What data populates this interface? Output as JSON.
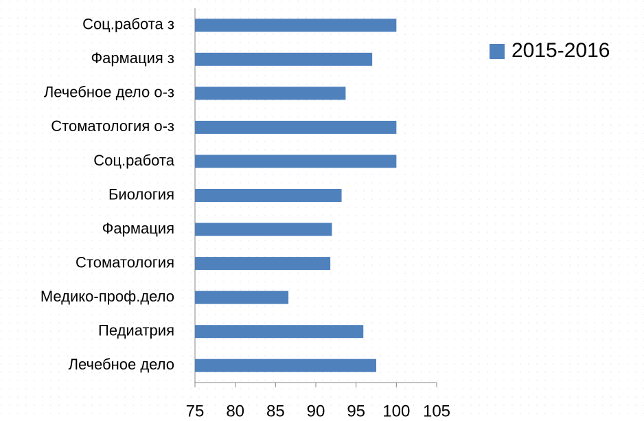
{
  "chart_data": {
    "type": "bar",
    "orientation": "horizontal",
    "categories": [
      "Соц.работа з",
      "Фармация з",
      "Лечебное дело о-з",
      "Стоматология о-з",
      "Соц.работа",
      "Биология",
      "Фармация",
      "Стоматология",
      "Медико-проф.дело",
      "Педиатрия",
      "Лечебное дело"
    ],
    "series": [
      {
        "name": "2015-2016",
        "color": "#4f81bd",
        "values": [
          100,
          97,
          93.7,
          100,
          100,
          93.2,
          92,
          91.8,
          86.6,
          95.9,
          97.5
        ]
      }
    ],
    "xlim": [
      75,
      105
    ],
    "xticks": [
      75,
      80,
      85,
      90,
      95,
      100,
      105
    ],
    "legend": "right"
  }
}
